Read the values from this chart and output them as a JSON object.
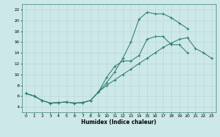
{
  "xlabel": "Humidex (Indice chaleur)",
  "bg_color": "#cde8e8",
  "grid_color": "#b8d4d4",
  "line_color": "#2e7d72",
  "xmin": -0.5,
  "xmax": 23.5,
  "ymin": 3,
  "ymax": 23,
  "yticks": [
    4,
    6,
    8,
    10,
    12,
    14,
    16,
    18,
    20,
    22
  ],
  "xticks": [
    0,
    1,
    2,
    3,
    4,
    5,
    6,
    7,
    8,
    9,
    10,
    11,
    12,
    13,
    14,
    15,
    16,
    17,
    18,
    19,
    20,
    21,
    22,
    23
  ],
  "curve1_x": [
    0,
    1,
    2,
    3,
    4,
    5,
    6,
    7,
    8,
    9,
    10,
    11,
    12,
    13,
    14,
    15,
    16,
    17,
    18,
    19,
    20
  ],
  "curve1_y": [
    6.5,
    6.0,
    5.2,
    4.7,
    4.8,
    4.9,
    4.7,
    4.8,
    5.2,
    6.8,
    8.5,
    10.5,
    13.0,
    16.0,
    20.2,
    21.5,
    21.2,
    21.2,
    20.5,
    19.5,
    18.5
  ],
  "curve2_x": [
    0,
    1,
    2,
    3,
    4,
    5,
    6,
    7,
    8,
    9,
    10,
    11,
    12,
    13,
    14,
    15,
    16,
    17,
    18,
    19,
    20,
    21,
    22,
    23
  ],
  "curve2_y": [
    6.5,
    6.0,
    5.2,
    4.7,
    4.8,
    4.9,
    4.7,
    4.8,
    5.2,
    6.8,
    9.5,
    11.5,
    12.5,
    12.5,
    13.5,
    16.5,
    17.0,
    17.0,
    15.5,
    15.5,
    14.0,
    null,
    null,
    null
  ],
  "curve3_x": [
    0,
    1,
    2,
    3,
    4,
    5,
    6,
    7,
    8,
    9,
    10,
    11,
    12,
    13,
    14,
    15,
    16,
    17,
    18,
    19,
    20,
    21,
    22,
    23
  ],
  "curve3_y": [
    6.5,
    6.0,
    5.2,
    4.7,
    4.8,
    4.9,
    4.7,
    4.8,
    5.2,
    6.8,
    8.0,
    9.0,
    10.0,
    11.0,
    12.0,
    13.0,
    14.0,
    15.0,
    15.8,
    16.5,
    16.8,
    14.8,
    14.0,
    13.0
  ]
}
